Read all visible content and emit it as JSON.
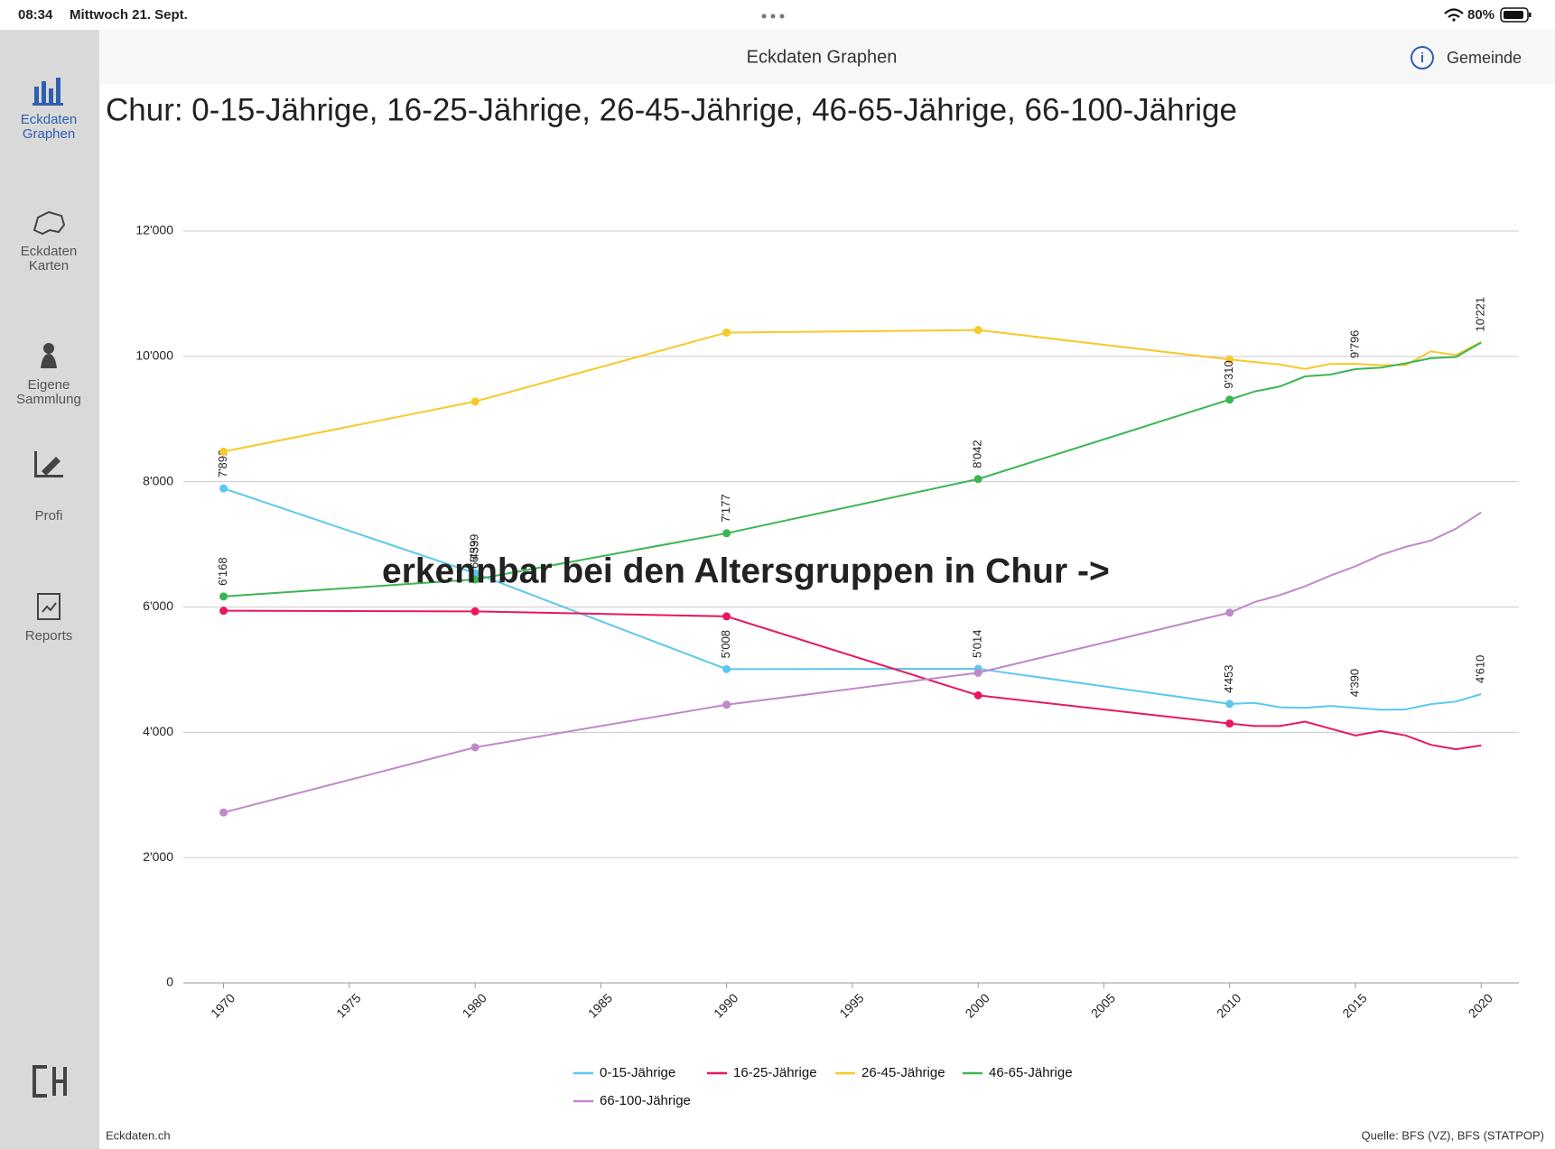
{
  "status_bar": {
    "time": "08:34",
    "date": "Mittwoch 21. Sept.",
    "battery": "80%"
  },
  "nav": {
    "title": "Eckdaten Graphen",
    "button": "Gemeinde"
  },
  "sidebar": {
    "items": [
      {
        "lines": [
          "Eckdaten",
          "Graphen"
        ]
      },
      {
        "lines": [
          "Eckdaten",
          "Karten"
        ]
      },
      {
        "lines": [
          "Eigene",
          "Sammlung"
        ]
      },
      {
        "lines": [
          "Profi"
        ]
      },
      {
        "lines": [
          "Reports"
        ]
      }
    ]
  },
  "footer": {
    "left": "Eckdaten.ch",
    "right": "Quelle: BFS (VZ), BFS (STATPOP)"
  },
  "chart_data": {
    "type": "line",
    "title": "Chur: 0-15-Jährige, 16-25-Jährige, 26-45-Jährige, 46-65-Jährige, 66-100-Jährige",
    "annotation": "erkennbar bei den Altersgruppen in Chur ->",
    "x": [
      1970,
      1980,
      1990,
      2000,
      2010,
      2011,
      2012,
      2013,
      2014,
      2015,
      2016,
      2017,
      2018,
      2019,
      2020
    ],
    "xlim": [
      1968.4,
      2021.5
    ],
    "xticks": [
      1970,
      1975,
      1980,
      1985,
      1990,
      1995,
      2000,
      2005,
      2010,
      2015,
      2020
    ],
    "ylim": [
      0,
      12000
    ],
    "yticks": [
      0,
      {
        "value": 2000,
        "label": "2'000"
      },
      {
        "value": 4000,
        "label": "4'000"
      },
      {
        "value": 6000,
        "label": "6'000"
      },
      {
        "value": 8000,
        "label": "8'000"
      },
      {
        "value": 10000,
        "label": "10'000"
      },
      {
        "value": 12000,
        "label": "12'000"
      }
    ],
    "grid": true,
    "series": [
      {
        "name": "0-15-Jährige",
        "color": "#5bc8ee",
        "values": [
          7892,
          6539,
          5008,
          5014,
          4453,
          4470,
          4400,
          4390,
          4420,
          4390,
          4360,
          4365,
          4450,
          4490,
          4610
        ],
        "value_labels": [
          "7'892",
          "6'539",
          "5'008",
          "5'014",
          "4'453",
          null,
          null,
          null,
          null,
          "4'390",
          null,
          null,
          null,
          null,
          "4'610"
        ]
      },
      {
        "name": "16-25-Jährige",
        "color": "#e8185d",
        "values": [
          5940,
          5930,
          5850,
          4590,
          4140,
          4100,
          4100,
          4170,
          4060,
          3950,
          4020,
          3950,
          3800,
          3730,
          3790
        ]
      },
      {
        "name": "26-45-Jährige",
        "color": "#f7c929",
        "values": [
          8480,
          9280,
          10380,
          10420,
          9950,
          9910,
          9870,
          9800,
          9880,
          9880,
          9860,
          9860,
          10080,
          10020,
          10230
        ]
      },
      {
        "name": "46-65-Jährige",
        "color": "#3cb553",
        "values": [
          6168,
          6439,
          7177,
          8042,
          9310,
          9440,
          9520,
          9680,
          9710,
          9796,
          9820,
          9890,
          9970,
          9990,
          10221
        ],
        "value_labels": [
          "6'168",
          "6'439",
          "7'177",
          "8'042",
          "9'310",
          null,
          null,
          null,
          null,
          "9'796",
          null,
          null,
          null,
          null,
          "10'221"
        ]
      },
      {
        "name": "66-100-Jährige",
        "color": "#c088c8",
        "values": [
          2720,
          3760,
          4440,
          4950,
          5910,
          6080,
          6190,
          6330,
          6500,
          6650,
          6830,
          6960,
          7060,
          7250,
          7510
        ]
      }
    ]
  }
}
